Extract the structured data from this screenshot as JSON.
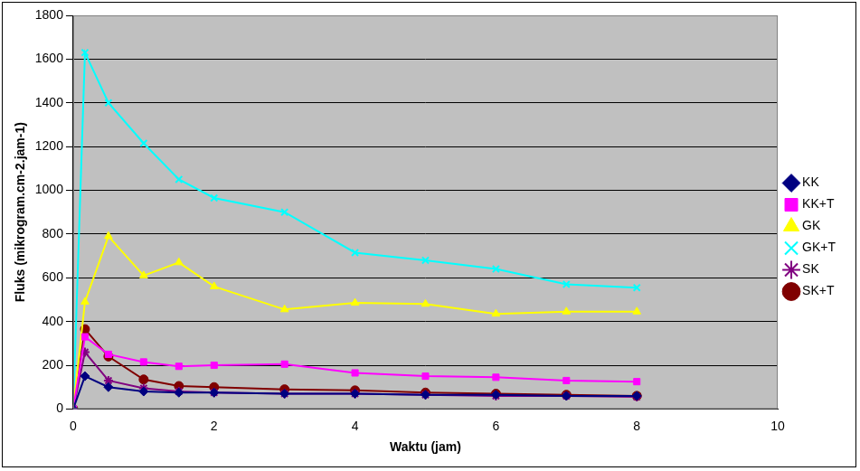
{
  "chart_data": {
    "type": "line",
    "x_label": "Waktu (jam)",
    "y_label": "Fluks (mikrogram.cm-2.jam-1)",
    "x": [
      0,
      0.167,
      0.5,
      1,
      1.5,
      2,
      3,
      4,
      5,
      6,
      7,
      8
    ],
    "xlim": [
      0,
      10
    ],
    "xticks": [
      0,
      2,
      4,
      6,
      8,
      10
    ],
    "ylim": [
      0,
      1800
    ],
    "yticks": [
      0,
      200,
      400,
      600,
      800,
      1000,
      1200,
      1400,
      1600,
      1800
    ],
    "grid": true,
    "legend": "right",
    "series": [
      {
        "name": "KK",
        "color": "#000080",
        "marker": "diamond",
        "values": [
          0,
          150,
          100,
          80,
          75,
          75,
          70,
          70,
          65,
          65,
          60,
          60
        ]
      },
      {
        "name": "KK+T",
        "color": "#ff00ff",
        "marker": "square",
        "values": [
          0,
          330,
          250,
          215,
          195,
          200,
          205,
          165,
          150,
          145,
          130,
          125
        ]
      },
      {
        "name": "GK",
        "color": "#ffff00",
        "marker": "triangle",
        "values": [
          0,
          490,
          790,
          610,
          670,
          560,
          455,
          485,
          480,
          435,
          445,
          445
        ]
      },
      {
        "name": "GK+T",
        "color": "#00ffff",
        "marker": "x",
        "values": [
          0,
          1630,
          1400,
          1215,
          1050,
          965,
          900,
          715,
          680,
          640,
          570,
          555
        ]
      },
      {
        "name": "SK",
        "color": "#800080",
        "marker": "star",
        "values": [
          0,
          260,
          130,
          95,
          80,
          75,
          70,
          70,
          65,
          60,
          60,
          55
        ]
      },
      {
        "name": "SK+T",
        "color": "#800000",
        "marker": "circle",
        "values": [
          0,
          365,
          240,
          135,
          105,
          100,
          90,
          85,
          75,
          70,
          65,
          60
        ]
      }
    ]
  }
}
